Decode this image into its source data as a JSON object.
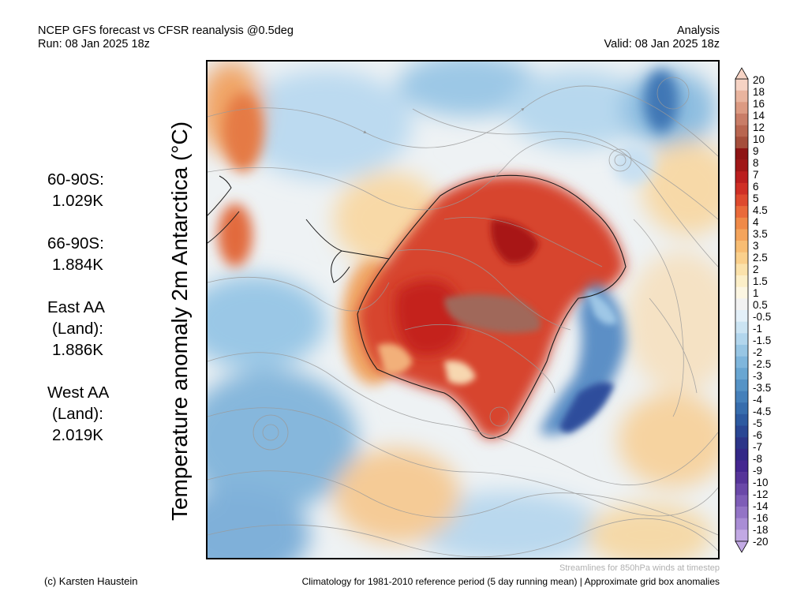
{
  "header": {
    "title": "NCEP GFS forecast vs CFSR reanalysis @0.5deg",
    "run": "Run: 08 Jan 2025 18z",
    "mode": "Analysis",
    "valid": "Valid: 08 Jan 2025 18z"
  },
  "map_title": "Temperature anomaly 2m Antarctica (°C)",
  "stats": [
    {
      "lines": [
        "60-90S:",
        "1.029K"
      ]
    },
    {
      "lines": [
        "66-90S:",
        "1.884K"
      ]
    },
    {
      "lines": [
        "East AA",
        "(Land):",
        "1.886K"
      ]
    },
    {
      "lines": [
        "West AA",
        "(Land):",
        "2.019K"
      ]
    }
  ],
  "colorbar": {
    "labels": [
      "20",
      "18",
      "16",
      "14",
      "12",
      "10",
      "9",
      "8",
      "7",
      "6",
      "5",
      "4.5",
      "4",
      "3.5",
      "3",
      "2.5",
      "2",
      "1.5",
      "1",
      "0.5",
      "-0.5",
      "-1",
      "-1.5",
      "-2",
      "-2.5",
      "-3",
      "-3.5",
      "-4",
      "-4.5",
      "-5",
      "-6",
      "-7",
      "-8",
      "-9",
      "-10",
      "-12",
      "-14",
      "-16",
      "-18",
      "-20"
    ],
    "colors": [
      "#f6d3c4",
      "#e9b49e",
      "#dc9a82",
      "#c97d67",
      "#b96650",
      "#a54e3b",
      "#8e1414",
      "#a01717",
      "#bb1f1f",
      "#cf2f25",
      "#de4a2e",
      "#ea6a3a",
      "#f08a48",
      "#f4a45c",
      "#f8bd73",
      "#fad08c",
      "#fbe2ab",
      "#fcefc8",
      "#fcf6e2",
      "#f2f2f2",
      "#e3f0f9",
      "#cbe4f3",
      "#b2d6ed",
      "#98c6e4",
      "#7fb6dc",
      "#69a6d2",
      "#5593c6",
      "#4580ba",
      "#376dad",
      "#2d5aa0",
      "#2a4794",
      "#2c3589",
      "#332887",
      "#442690",
      "#563499",
      "#6a48a8",
      "#7e5db7",
      "#9374c6",
      "#a98dd5",
      "#c2a9e4"
    ]
  },
  "footer": {
    "credit": "(c) Karsten Haustein",
    "streamlines": "Streamlines for 850hPa winds at timestep",
    "climatology": "Climatology for 1981-2010 reference period (5 day running mean) | Approximate grid box anomalies"
  }
}
